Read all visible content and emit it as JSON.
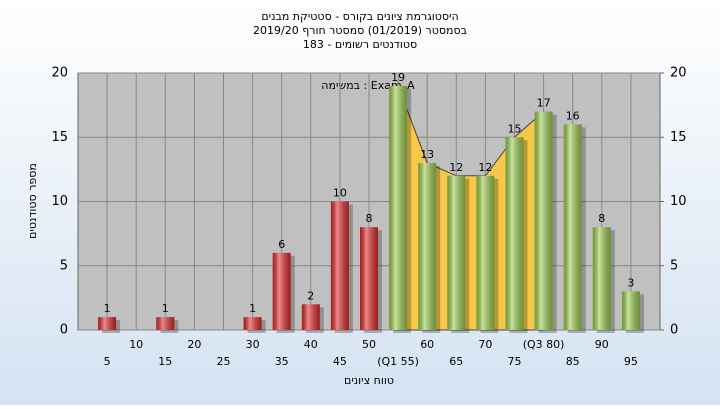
{
  "chart_data": {
    "type": "bar",
    "title": "היסטוגרמת ציונים בקורס - סטטיקת מבנים",
    "subtitle": "בסמסטר (01/2019) סמסטר חורף 2019/20",
    "subtitle2": "סטודנטים רשומים - 183",
    "annotation": "Exam_A : במשימה",
    "xlabel": "טווח ציונים",
    "ylabel": "מספר סטודנטים",
    "x": [
      5,
      10,
      15,
      20,
      25,
      30,
      35,
      40,
      45,
      50,
      55,
      60,
      65,
      70,
      75,
      80,
      85,
      90,
      95
    ],
    "values": [
      1,
      0,
      1,
      0,
      0,
      1,
      6,
      2,
      10,
      8,
      19,
      13,
      12,
      12,
      15,
      17,
      16,
      8,
      3
    ],
    "colors": [
      "#e02a2a",
      "#e02a2a",
      "#e02a2a",
      "#e02a2a",
      "#e02a2a",
      "#e02a2a",
      "#e02a2a",
      "#e02a2a",
      "#e02a2a",
      "#e02a2a",
      "#9ccc4c",
      "#9ccc4c",
      "#9ccc4c",
      "#9ccc4c",
      "#9ccc4c",
      "#9ccc4c",
      "#9ccc4c",
      "#9ccc4c",
      "#9ccc4c"
    ],
    "xlim": [
      0,
      100
    ],
    "xticks": [
      5,
      10,
      15,
      20,
      25,
      30,
      35,
      40,
      45,
      50,
      {
        "value": 55,
        "label": "(Q1 55)"
      },
      60,
      65,
      70,
      75,
      {
        "value": 80,
        "label": "(Q3 80)"
      },
      85,
      90,
      95
    ],
    "ylim": [
      0,
      20
    ],
    "yticks": [
      0,
      5,
      10,
      15,
      20
    ],
    "y2lim": [
      0,
      20
    ],
    "y2ticks": [
      0,
      5,
      10,
      15,
      20
    ],
    "shade_xlim": [
      55,
      80
    ],
    "shade_color": "#f5c84a",
    "grid": true
  }
}
